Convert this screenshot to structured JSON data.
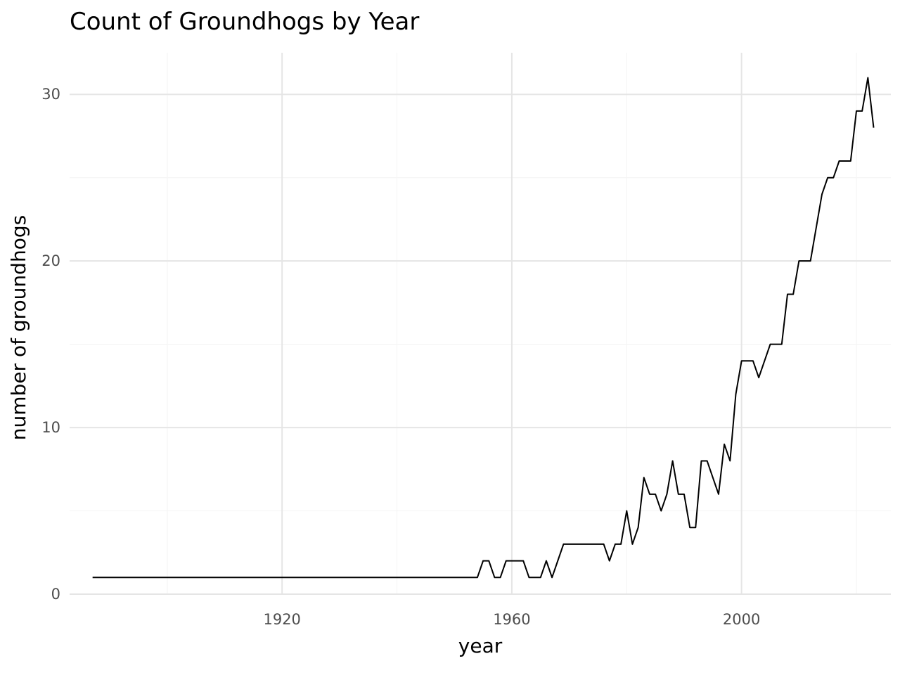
{
  "chart_data": {
    "type": "line",
    "title": "Count of Groundhogs by Year",
    "xlabel": "year",
    "ylabel": "number of groundhogs",
    "xlim": [
      1883,
      2026
    ],
    "ylim": [
      0,
      32.5
    ],
    "x_ticks": [
      1920,
      1960,
      2000
    ],
    "x_minor_ticks": [
      1900,
      1940,
      1980,
      2020
    ],
    "y_ticks": [
      0,
      10,
      20,
      30
    ],
    "y_minor_ticks": [
      5,
      15,
      25
    ],
    "grid": true,
    "legend": "none",
    "colors": {
      "line": "#000000",
      "grid_major": "#e5e5e5",
      "grid_minor": "#f5f5f5",
      "tick_label": "#4d4d4d"
    },
    "series": [
      {
        "x": [
          1887,
          1888,
          1889,
          1890,
          1891,
          1892,
          1893,
          1894,
          1895,
          1896,
          1897,
          1898,
          1899,
          1900,
          1901,
          1902,
          1903,
          1904,
          1905,
          1906,
          1907,
          1908,
          1909,
          1910,
          1911,
          1912,
          1913,
          1914,
          1915,
          1916,
          1917,
          1918,
          1919,
          1920,
          1921,
          1922,
          1923,
          1924,
          1925,
          1926,
          1927,
          1928,
          1929,
          1930,
          1931,
          1932,
          1933,
          1934,
          1935,
          1936,
          1937,
          1938,
          1939,
          1940,
          1941,
          1942,
          1943,
          1944,
          1945,
          1946,
          1947,
          1948,
          1949,
          1950,
          1951,
          1952,
          1953,
          1954,
          1955,
          1956,
          1957,
          1958,
          1959,
          1960,
          1961,
          1962,
          1963,
          1964,
          1965,
          1966,
          1967,
          1968,
          1969,
          1970,
          1971,
          1972,
          1973,
          1974,
          1975,
          1976,
          1977,
          1978,
          1979,
          1980,
          1981,
          1982,
          1983,
          1984,
          1985,
          1986,
          1987,
          1988,
          1989,
          1990,
          1991,
          1992,
          1993,
          1994,
          1995,
          1996,
          1997,
          1998,
          1999,
          2000,
          2001,
          2002,
          2003,
          2004,
          2005,
          2006,
          2007,
          2008,
          2009,
          2010,
          2011,
          2012,
          2013,
          2014,
          2015,
          2016,
          2017,
          2018,
          2019,
          2020,
          2021,
          2022,
          2023
        ],
        "values": [
          1,
          1,
          1,
          1,
          1,
          1,
          1,
          1,
          1,
          1,
          1,
          1,
          1,
          1,
          1,
          1,
          1,
          1,
          1,
          1,
          1,
          1,
          1,
          1,
          1,
          1,
          1,
          1,
          1,
          1,
          1,
          1,
          1,
          1,
          1,
          1,
          1,
          1,
          1,
          1,
          1,
          1,
          1,
          1,
          1,
          1,
          1,
          1,
          1,
          1,
          1,
          1,
          1,
          1,
          1,
          1,
          1,
          1,
          1,
          1,
          1,
          1,
          1,
          1,
          1,
          1,
          1,
          1,
          2,
          2,
          1,
          1,
          2,
          2,
          2,
          2,
          1,
          1,
          1,
          2,
          1,
          2,
          3,
          3,
          3,
          3,
          3,
          3,
          3,
          3,
          2,
          3,
          3,
          5,
          3,
          4,
          7,
          6,
          6,
          5,
          6,
          8,
          6,
          6,
          4,
          4,
          8,
          8,
          7,
          6,
          9,
          8,
          12,
          14,
          14,
          14,
          13,
          14,
          15,
          15,
          15,
          18,
          18,
          20,
          20,
          20,
          22,
          24,
          25,
          25,
          26,
          26,
          26,
          29,
          29,
          31,
          28
        ]
      }
    ]
  }
}
